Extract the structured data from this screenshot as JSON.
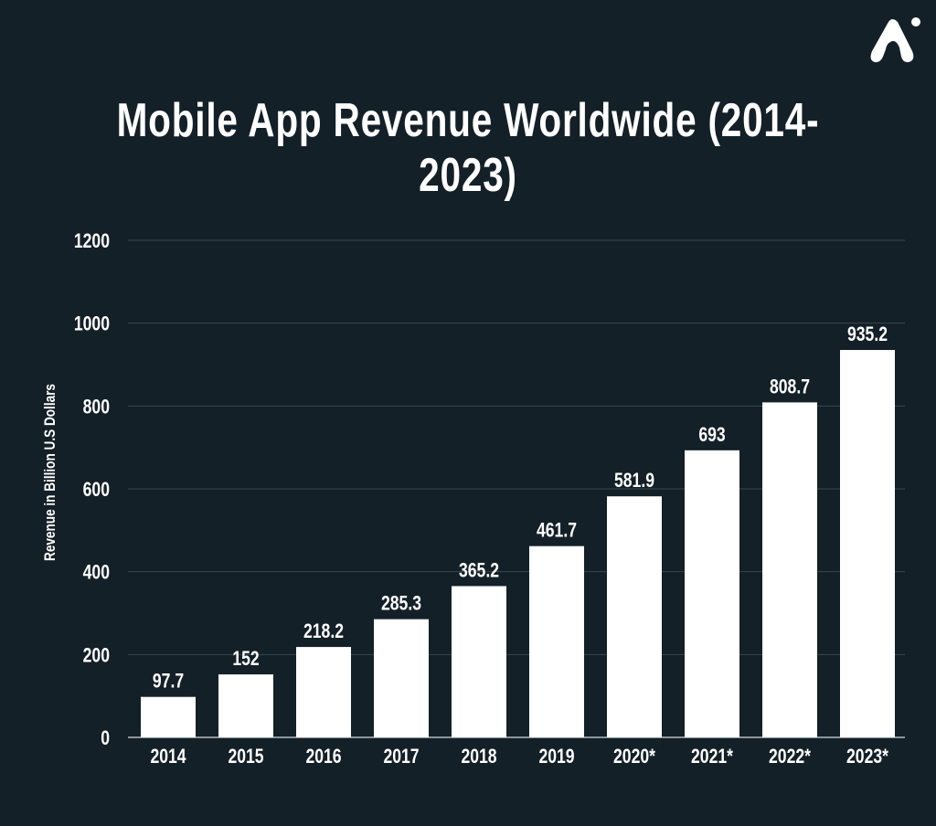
{
  "logo": {
    "icon": "brand-a-logo-icon"
  },
  "colors": {
    "background": "#142028",
    "bar": "#ffffff",
    "grid": "#3a464d",
    "text": "#ffffff"
  },
  "chart_data": {
    "type": "bar",
    "title": "Mobile App Revenue Worldwide (2014-2023)",
    "xlabel": "",
    "ylabel": "Revenue in Billion U.S Dollars",
    "categories": [
      "2014",
      "2015",
      "2016",
      "2017",
      "2018",
      "2019",
      "2020*",
      "2021*",
      "2022*",
      "2023*"
    ],
    "values": [
      97.7,
      152,
      218.2,
      285.3,
      365.2,
      461.7,
      581.9,
      693,
      808.7,
      935.2
    ],
    "data_labels": [
      "97.7",
      "152",
      "218.2",
      "285.3",
      "365.2",
      "461.7",
      "581.9",
      "693",
      "808.7",
      "935.2"
    ],
    "ylim": [
      0,
      1200
    ],
    "yticks": [
      0,
      200,
      400,
      600,
      800,
      1000,
      1200
    ],
    "grid": true,
    "legend": "none"
  }
}
